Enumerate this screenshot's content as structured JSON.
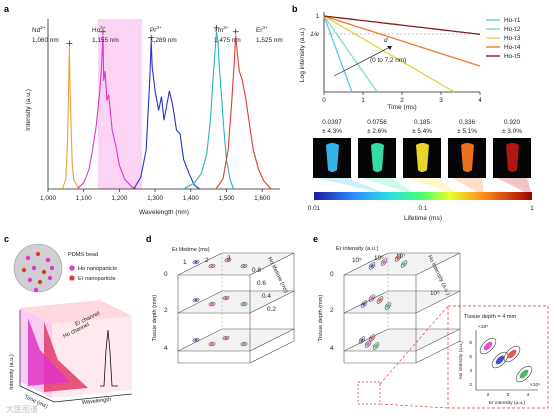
{
  "panels": {
    "a": {
      "letter": "a"
    },
    "b": {
      "letter": "b"
    },
    "c": {
      "letter": "c"
    },
    "d": {
      "letter": "d"
    },
    "e": {
      "letter": "e"
    }
  },
  "chart_data": [
    {
      "panel": "a",
      "type": "line",
      "xlabel": "Wavelength (nm)",
      "ylabel": "Intensity (a.u.)",
      "xlim": [
        1000,
        1650
      ],
      "xticks": [
        "1,000",
        "1,100",
        "1,200",
        "1,300",
        "1,400",
        "1,500",
        "1,600"
      ],
      "highlight_band": [
        1100,
        1250
      ],
      "series": [
        {
          "ion": "Nd",
          "sup": "3+",
          "peak_label": "1,060 nm",
          "color": "#e9a13b",
          "points": [
            [
              1040,
              0.0
            ],
            [
              1050,
              0.05
            ],
            [
              1055,
              0.25
            ],
            [
              1058,
              0.55
            ],
            [
              1060,
              0.72
            ],
            [
              1062,
              0.5
            ],
            [
              1065,
              0.3
            ],
            [
              1068,
              0.12
            ],
            [
              1072,
              0.05
            ],
            [
              1080,
              0.02
            ],
            [
              1090,
              0.0
            ]
          ]
        },
        {
          "ion": "Ho",
          "sup": "3+",
          "peak_label": "1,155 nm",
          "color": "#e033c7",
          "points": [
            [
              1080,
              0.0
            ],
            [
              1100,
              0.03
            ],
            [
              1115,
              0.1
            ],
            [
              1125,
              0.2
            ],
            [
              1135,
              0.32
            ],
            [
              1145,
              0.5
            ],
            [
              1150,
              0.62
            ],
            [
              1154,
              0.78
            ],
            [
              1156,
              0.55
            ],
            [
              1160,
              0.6
            ],
            [
              1165,
              0.45
            ],
            [
              1170,
              0.48
            ],
            [
              1180,
              0.3
            ],
            [
              1190,
              0.22
            ],
            [
              1200,
              0.12
            ],
            [
              1215,
              0.05
            ],
            [
              1235,
              0.01
            ],
            [
              1250,
              0.0
            ]
          ]
        },
        {
          "ion": "Pr",
          "sup": "3+",
          "peak_label": "1,289 nm",
          "color": "#2334c7",
          "points": [
            [
              1240,
              0.0
            ],
            [
              1260,
              0.06
            ],
            [
              1275,
              0.2
            ],
            [
              1285,
              0.55
            ],
            [
              1289,
              0.75
            ],
            [
              1292,
              0.62
            ],
            [
              1300,
              0.5
            ],
            [
              1310,
              0.4
            ],
            [
              1318,
              0.47
            ],
            [
              1325,
              0.35
            ],
            [
              1340,
              0.5
            ],
            [
              1350,
              0.42
            ],
            [
              1360,
              0.3
            ],
            [
              1370,
              0.28
            ],
            [
              1380,
              0.15
            ],
            [
              1395,
              0.08
            ],
            [
              1410,
              0.02
            ],
            [
              1425,
              0.0
            ]
          ]
        },
        {
          "ion": "Tm",
          "sup": "3+",
          "peak_label": "1,475 nm",
          "color": "#25b8b3",
          "points": [
            [
              1380,
              0.0
            ],
            [
              1410,
              0.03
            ],
            [
              1430,
              0.08
            ],
            [
              1445,
              0.18
            ],
            [
              1455,
              0.35
            ],
            [
              1462,
              0.55
            ],
            [
              1468,
              0.7
            ],
            [
              1472,
              0.8
            ],
            [
              1476,
              0.75
            ],
            [
              1480,
              0.62
            ],
            [
              1485,
              0.5
            ],
            [
              1492,
              0.32
            ],
            [
              1500,
              0.15
            ],
            [
              1510,
              0.05
            ],
            [
              1520,
              0.0
            ]
          ]
        },
        {
          "ion": "Er",
          "sup": "3+",
          "peak_label": "1,525 nm",
          "color": "#e23b2f",
          "points": [
            [
              1470,
              0.0
            ],
            [
              1490,
              0.05
            ],
            [
              1505,
              0.2
            ],
            [
              1515,
              0.45
            ],
            [
              1522,
              0.65
            ],
            [
              1526,
              0.78
            ],
            [
              1530,
              0.7
            ],
            [
              1536,
              0.6
            ],
            [
              1545,
              0.55
            ],
            [
              1555,
              0.45
            ],
            [
              1565,
              0.32
            ],
            [
              1575,
              0.2
            ],
            [
              1590,
              0.1
            ],
            [
              1605,
              0.04
            ],
            [
              1625,
              0.0
            ]
          ]
        }
      ]
    },
    {
      "panel": "b",
      "type": "line",
      "xlabel": "Time (ms)",
      "ylabel": "Log intensity (a.u.)",
      "xlim": [
        0,
        4
      ],
      "xticks": [
        "0",
        "1",
        "2",
        "3",
        "4"
      ],
      "yticks": [
        "1",
        "1/e"
      ],
      "annotation_d": "d",
      "annotation_range": "(0 to 7.2 nm)",
      "legend_position": "top-right",
      "series": [
        {
          "name": "Ho-τ1",
          "tau_ms": 0.0397,
          "color": "#5fc8e6"
        },
        {
          "name": "Ho-τ2",
          "tau_ms": 0.0756,
          "color": "#7fe0b8"
        },
        {
          "name": "Ho-τ3",
          "tau_ms": 0.185,
          "color": "#e8d240"
        },
        {
          "name": "Ho-τ4",
          "tau_ms": 0.336,
          "color": "#f07a2a"
        },
        {
          "name": "Ho-τ5",
          "tau_ms": 0.92,
          "color": "#8a1a1a"
        }
      ],
      "images": [
        {
          "value": "0.0397",
          "err": "± 4.3%",
          "color": "#37c4ff"
        },
        {
          "value": "0.0756",
          "err": "± 2.6%",
          "color": "#39f0b0"
        },
        {
          "value": "0.185",
          "err": "± 5.4%",
          "color": "#ffe82a"
        },
        {
          "value": "0.336",
          "err": "± 5.1%",
          "color": "#ff7a1e"
        },
        {
          "value": "0.920",
          "err": "± 3.0%",
          "color": "#c01818"
        }
      ],
      "colorbar": {
        "label": "Lifetime (ms)",
        "ticks": [
          "0.01",
          "0.1",
          "1"
        ]
      }
    },
    {
      "panel": "c",
      "type": "other",
      "bead_label": "PDMS bead",
      "legend": [
        {
          "label": "Ho nanoparticle",
          "color": "#e038c8"
        },
        {
          "label": "Er nanoparticle",
          "color": "#e03a2a"
        }
      ],
      "channels": [
        "Er channel",
        "Ho channel"
      ],
      "axes": {
        "z": "Intensity (a.u.)",
        "x": "Time (ms)",
        "y": "Wavelength"
      }
    },
    {
      "panel": "d",
      "type": "scatter",
      "top_axis": "Er lifetime (ms)",
      "top_ticks": [
        "1",
        "2",
        "3"
      ],
      "right_axis": "Ho lifetime (ms)",
      "right_ticks": [
        "0.8",
        "0.6",
        "0.4",
        "0.2"
      ],
      "depth_axis": "Tissue depth (mm)",
      "depth_ticks": [
        "0",
        "2",
        "4"
      ]
    },
    {
      "panel": "e",
      "type": "scatter",
      "top_axis": "Er intensity (a.u.)",
      "top_ticks": [
        "10⁵",
        "10⁶",
        "10⁷"
      ],
      "right_axis": "Ho intensity (a.u.)",
      "right_ticks": [
        "10⁶"
      ],
      "depth_axis": "Tissue depth (mm)",
      "depth_ticks": [
        "0",
        "2",
        "4"
      ],
      "inset": {
        "title": "Tissue depth = 4 mm",
        "xlabel": "Er intensity (a.u.)",
        "ylabel": "Ho intensity (a.u.)",
        "xscale": "×10⁴",
        "yscale": "×10⁵",
        "xticks": [
          "2",
          "3",
          "4"
        ],
        "yticks": [
          "2",
          "4",
          "6",
          "8"
        ]
      }
    }
  ],
  "watermark": "大医图谱"
}
